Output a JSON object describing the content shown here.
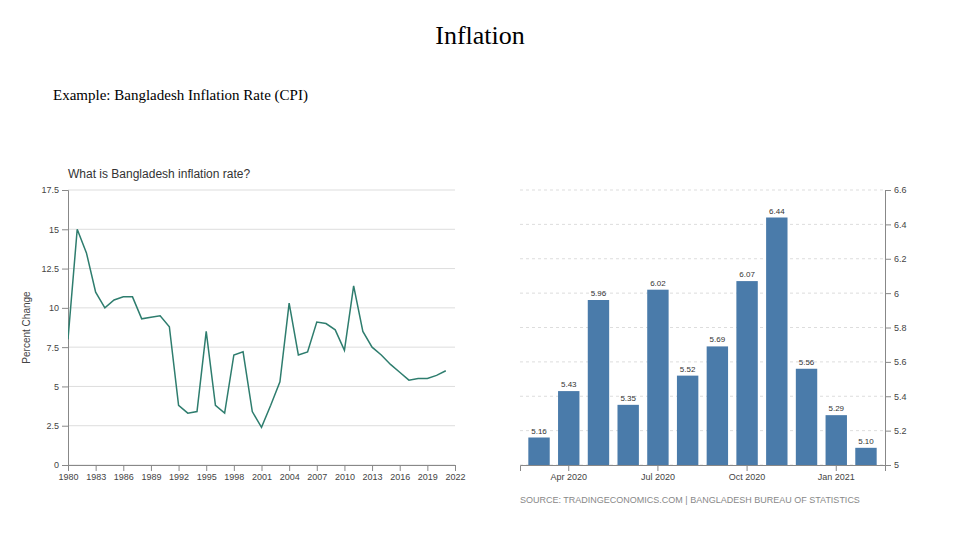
{
  "title": "Inflation",
  "subtitle": "Example: Bangladesh Inflation Rate (CPI)",
  "chart_data": [
    {
      "type": "line",
      "title": "What is Bangladesh inflation rate?",
      "ylabel": "Percent Change",
      "x": [
        1980,
        1981,
        1982,
        1983,
        1984,
        1985,
        1986,
        1987,
        1988,
        1989,
        1990,
        1991,
        1992,
        1993,
        1994,
        1995,
        1996,
        1997,
        1998,
        1999,
        2000,
        2001,
        2002,
        2003,
        2004,
        2005,
        2006,
        2007,
        2008,
        2009,
        2010,
        2011,
        2012,
        2013,
        2014,
        2015,
        2016,
        2017,
        2018,
        2019,
        2020,
        2021
      ],
      "values": [
        8.0,
        15.0,
        13.5,
        11.0,
        10.0,
        10.5,
        10.7,
        10.7,
        9.3,
        9.4,
        9.5,
        8.8,
        3.8,
        3.3,
        3.4,
        8.5,
        3.8,
        3.3,
        7.0,
        7.2,
        3.4,
        2.4,
        3.8,
        5.3,
        10.3,
        7.0,
        7.2,
        9.1,
        9.0,
        8.6,
        7.3,
        11.4,
        8.5,
        7.5,
        7.0,
        6.4,
        5.9,
        5.4,
        5.5,
        5.5,
        5.7,
        6.0
      ],
      "color": "#2e7d6e",
      "xlim": [
        1980,
        2022
      ],
      "xticks": [
        1980,
        1983,
        1986,
        1989,
        1992,
        1995,
        1998,
        2001,
        2004,
        2007,
        2010,
        2013,
        2016,
        2019,
        2022
      ],
      "ylim": [
        0,
        17.5
      ],
      "yticks": [
        0,
        2.5,
        5,
        7.5,
        10,
        12.5,
        15,
        17.5
      ],
      "grid": true
    },
    {
      "type": "bar",
      "categories": [
        null,
        "Apr 2020",
        null,
        null,
        "Jul 2020",
        null,
        null,
        "Oct 2020",
        null,
        null,
        "Jan 2021",
        null
      ],
      "values": [
        5.16,
        5.43,
        5.96,
        5.35,
        6.02,
        5.52,
        5.69,
        6.07,
        6.44,
        5.56,
        5.29,
        5.1
      ],
      "value_labels": [
        "5.16",
        "5.43",
        "5.96",
        "5.35",
        "6.02",
        "5.52",
        "5.69",
        "6.07",
        "6.44",
        "5.56",
        "5.29",
        "5.10"
      ],
      "data_labels": true,
      "color": "#4a7baa",
      "ylim": [
        5.0,
        6.6
      ],
      "yticks": [
        5,
        5.2,
        5.4,
        5.6,
        5.8,
        6,
        6.2,
        6.4,
        6.6
      ],
      "grid": true,
      "annotations": [
        "SOURCE: TRADINGECONOMICS.COM | BANGLADESH BUREAU OF STATISTICS"
      ]
    }
  ]
}
